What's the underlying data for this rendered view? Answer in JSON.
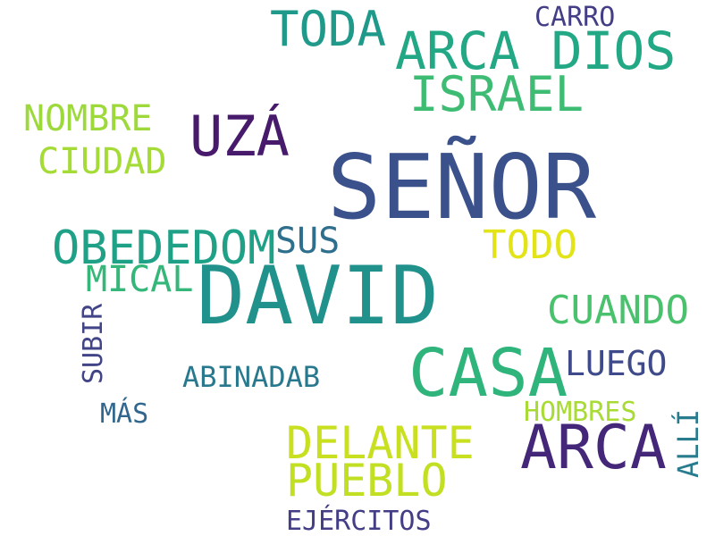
{
  "words": [
    {
      "text": "SEÑOR",
      "color": "#3b518b",
      "orientation": "horizontal"
    },
    {
      "text": "DAVID",
      "color": "#21918c",
      "orientation": "horizontal"
    },
    {
      "text": "CASA",
      "color": "#2fb47c",
      "orientation": "horizontal"
    },
    {
      "text": "ARCA",
      "color": "#45277a",
      "orientation": "horizontal"
    },
    {
      "text": "ARCA DIOS",
      "color": "#22a884",
      "orientation": "horizontal"
    },
    {
      "text": "TODA",
      "color": "#1f9a8a",
      "orientation": "horizontal"
    },
    {
      "text": "UZÁ",
      "color": "#481a6c",
      "orientation": "horizontal"
    },
    {
      "text": "ISRAEL",
      "color": "#3fbc73",
      "orientation": "horizontal"
    },
    {
      "text": "OBEDEDOM",
      "color": "#1fa187",
      "orientation": "horizontal"
    },
    {
      "text": "DELANTE",
      "color": "#c8e020",
      "orientation": "horizontal"
    },
    {
      "text": "PUEBLO",
      "color": "#c2df23",
      "orientation": "horizontal"
    },
    {
      "text": "CUANDO",
      "color": "#4ac16d",
      "orientation": "horizontal"
    },
    {
      "text": "TODO",
      "color": "#e2e418",
      "orientation": "horizontal"
    },
    {
      "text": "NOMBRE",
      "color": "#9dd93b",
      "orientation": "horizontal"
    },
    {
      "text": "CIUDAD",
      "color": "#a5db36",
      "orientation": "horizontal"
    },
    {
      "text": "SUS",
      "color": "#2e6f8e",
      "orientation": "horizontal"
    },
    {
      "text": "MICAL",
      "color": "#35b779",
      "orientation": "horizontal"
    },
    {
      "text": "LUEGO",
      "color": "#3e4a89",
      "orientation": "horizontal"
    },
    {
      "text": "ABINADAB",
      "color": "#29798e",
      "orientation": "horizontal"
    },
    {
      "text": "HOMBRES",
      "color": "#a8db34",
      "orientation": "horizontal"
    },
    {
      "text": "CARRO",
      "color": "#433e85",
      "orientation": "horizontal"
    },
    {
      "text": "MÁS",
      "color": "#31678e",
      "orientation": "horizontal"
    },
    {
      "text": "EJÉRCITOS",
      "color": "#433e85",
      "orientation": "horizontal"
    },
    {
      "text": "SUBIR",
      "color": "#414487",
      "orientation": "vertical"
    },
    {
      "text": "ALLÍ",
      "color": "#287c8e",
      "orientation": "vertical"
    }
  ]
}
